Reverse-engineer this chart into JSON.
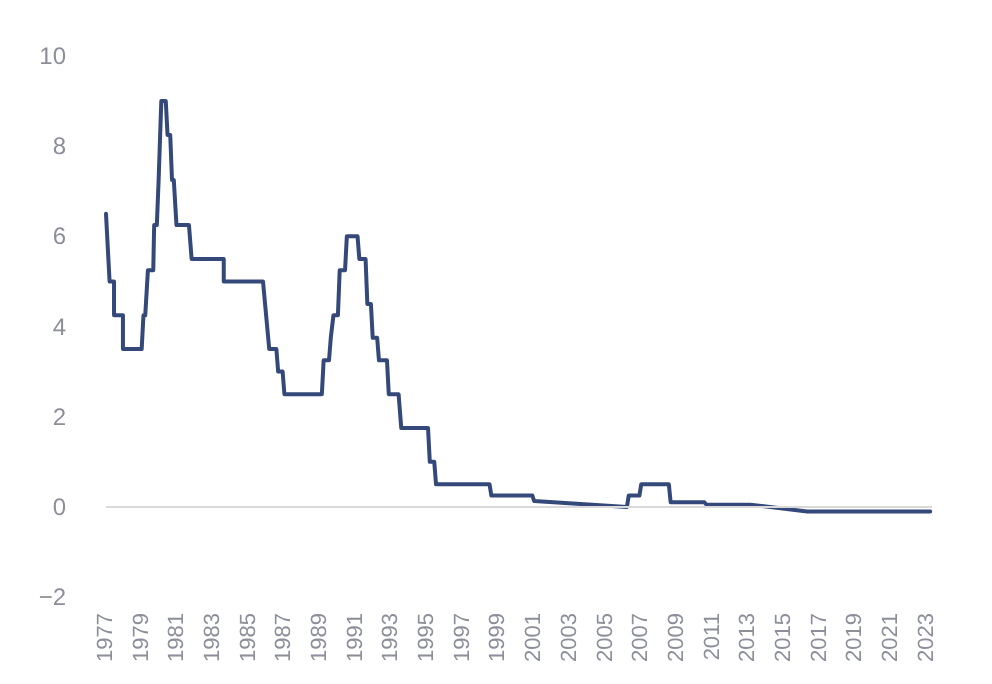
{
  "chart_data": {
    "type": "line",
    "x": [
      1977.0,
      1977.2,
      1977.2,
      1977.45,
      1977.45,
      1977.95,
      1977.95,
      1979.0,
      1979.1,
      1979.2,
      1979.35,
      1979.65,
      1979.7,
      1979.85,
      1979.95,
      1980.1,
      1980.35,
      1980.45,
      1980.6,
      1980.7,
      1980.8,
      1980.95,
      1981.65,
      1981.8,
      1983.6,
      1983.6,
      1985.8,
      1986.15,
      1986.55,
      1986.65,
      1986.9,
      1987.0,
      1989.1,
      1989.2,
      1989.5,
      1989.6,
      1989.75,
      1990.0,
      1990.1,
      1990.4,
      1990.5,
      1991.1,
      1991.2,
      1991.55,
      1991.65,
      1991.85,
      1991.95,
      1992.2,
      1992.3,
      1992.75,
      1992.85,
      1993.4,
      1993.55,
      1995.05,
      1995.15,
      1995.4,
      1995.5,
      1998.5,
      1998.6,
      2000.9,
      2001.0,
      2006.2,
      2006.3,
      2006.9,
      2007.0,
      2008.55,
      2008.65,
      2010.55,
      2010.65,
      2013.1,
      2016.3,
      2023.2
    ],
    "values": [
      6.5,
      5.0,
      5.0,
      5.0,
      4.25,
      4.25,
      3.5,
      3.5,
      4.25,
      4.25,
      5.25,
      5.25,
      6.25,
      6.25,
      7.25,
      9.0,
      9.0,
      8.25,
      8.25,
      7.25,
      7.25,
      6.25,
      6.25,
      5.5,
      5.5,
      5.0,
      5.0,
      3.5,
      3.5,
      3.0,
      3.0,
      2.5,
      2.5,
      3.25,
      3.25,
      3.75,
      4.25,
      4.25,
      5.25,
      5.25,
      6.0,
      6.0,
      5.5,
      5.5,
      4.5,
      4.5,
      3.75,
      3.75,
      3.25,
      3.25,
      2.5,
      2.5,
      1.75,
      1.75,
      1.0,
      1.0,
      0.5,
      0.5,
      0.25,
      0.25,
      0.13,
      0.0,
      0.25,
      0.25,
      0.5,
      0.5,
      0.1,
      0.1,
      0.05,
      0.05,
      -0.1,
      -0.1
    ],
    "color": "#34497a",
    "xlim": [
      1977,
      2023.3
    ],
    "xticks": [
      1977,
      1979,
      1981,
      1983,
      1985,
      1987,
      1989,
      1991,
      1993,
      1995,
      1997,
      1999,
      2001,
      2003,
      2005,
      2007,
      2009,
      2011,
      2013,
      2015,
      2017,
      2019,
      2021,
      2023
    ],
    "ylim": [
      -2,
      10
    ],
    "yticks": [
      -2,
      0,
      2,
      4,
      6,
      8,
      10
    ],
    "grid": false,
    "ref_lines": [
      {
        "axis": "y",
        "value": 0,
        "color": "#d9d9d9"
      }
    ],
    "marker": "none",
    "line_style": "solid"
  }
}
